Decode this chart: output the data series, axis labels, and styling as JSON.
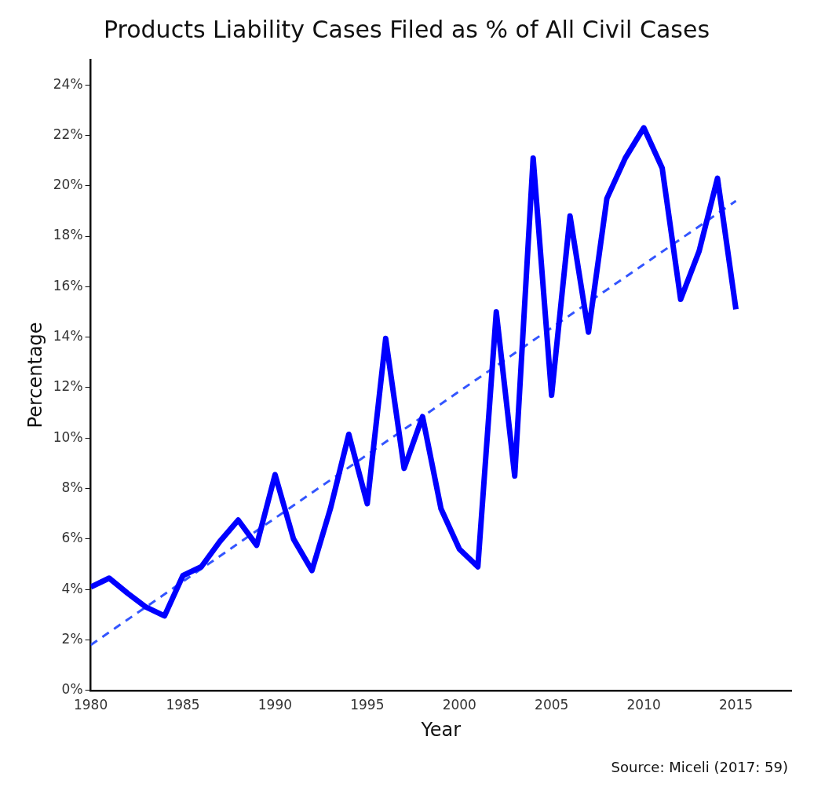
{
  "chart_data": {
    "type": "line",
    "title": "Products Liability Cases Filed as % of All Civil Cases",
    "xlabel": "Year",
    "ylabel": "Percentage",
    "annotations": [
      "Source: Miceli (2017: 59)"
    ],
    "x": [
      1980,
      1981,
      1982,
      1983,
      1984,
      1985,
      1986,
      1987,
      1988,
      1989,
      1990,
      1991,
      1992,
      1993,
      1994,
      1995,
      1996,
      1997,
      1998,
      1999,
      2000,
      2001,
      2002,
      2003,
      2004,
      2005,
      2006,
      2007,
      2008,
      2009,
      2010,
      2011,
      2012,
      2013,
      2014,
      2015
    ],
    "series": [
      {
        "color": "#0000ff",
        "line_style": "solid",
        "values": [
          4.1,
          4.45,
          3.85,
          3.3,
          2.95,
          4.55,
          4.9,
          5.9,
          6.75,
          5.75,
          8.55,
          6.0,
          4.75,
          7.2,
          10.15,
          7.4,
          13.95,
          8.8,
          10.85,
          7.2,
          5.6,
          4.9,
          15.0,
          8.5,
          21.1,
          11.7,
          18.8,
          14.2,
          19.5,
          21.1,
          22.3,
          20.7,
          15.5,
          17.4,
          20.3,
          15.1
        ]
      },
      {
        "type": "line",
        "color": "#3355ff",
        "line_style": "dashed",
        "x": [
          1980,
          2015
        ],
        "values": [
          1.8,
          19.4
        ]
      }
    ],
    "xlim": [
      1980,
      2018
    ],
    "xticks": [
      1980,
      1985,
      1990,
      1995,
      2000,
      2005,
      2010,
      2015
    ],
    "ylim": [
      0,
      25
    ],
    "yticks": [
      {
        "value": 0,
        "label": "0%"
      },
      {
        "value": 2,
        "label": "2%"
      },
      {
        "value": 4,
        "label": "4%"
      },
      {
        "value": 6,
        "label": "6%"
      },
      {
        "value": 8,
        "label": "8%"
      },
      {
        "value": 10,
        "label": "10%"
      },
      {
        "value": 12,
        "label": "12%"
      },
      {
        "value": 14,
        "label": "14%"
      },
      {
        "value": 16,
        "label": "16%"
      },
      {
        "value": 18,
        "label": "18%"
      },
      {
        "value": 20,
        "label": "20%"
      },
      {
        "value": 22,
        "label": "22%"
      },
      {
        "value": 24,
        "label": "24%"
      }
    ],
    "grid": false,
    "legend": false,
    "marker": "none"
  }
}
